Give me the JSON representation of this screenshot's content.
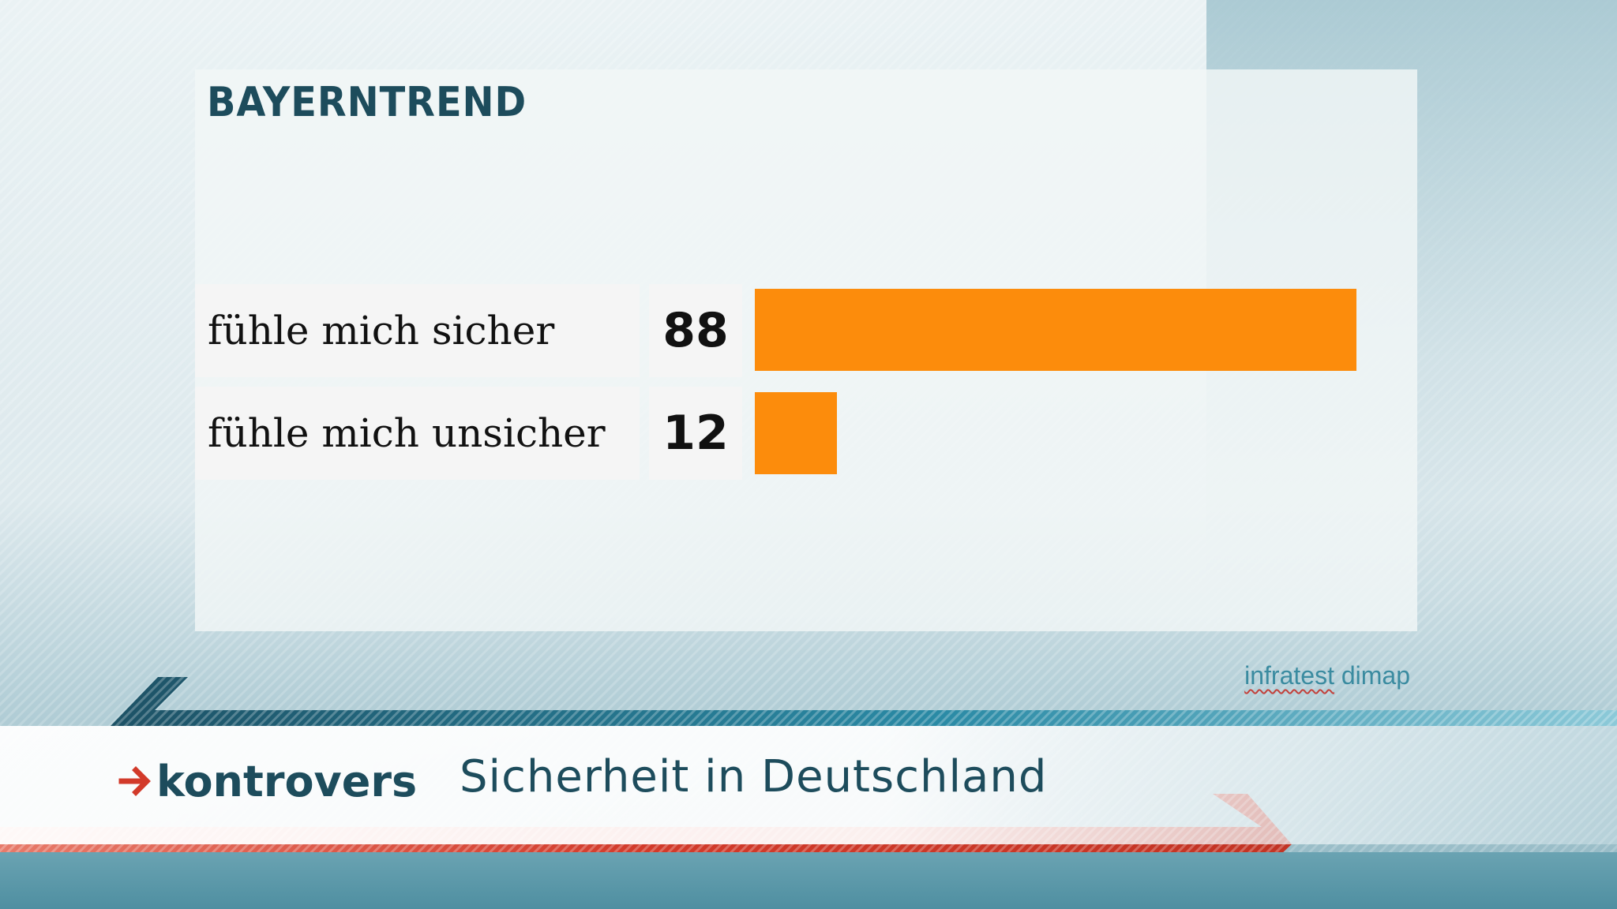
{
  "header": {
    "brand": "BAYERNTREND"
  },
  "chart_data": {
    "type": "bar",
    "orientation": "horizontal",
    "categories": [
      "fühle mich sicher",
      "fühle mich unsicher"
    ],
    "values": [
      88,
      12
    ],
    "value_labels": [
      "88",
      "12"
    ],
    "xlim": [
      0,
      88
    ],
    "grid": false,
    "bar_color": "#fc8c0c"
  },
  "source": {
    "part1": "infratest",
    "part2": "dimap"
  },
  "footer": {
    "logo_text": "kontrovers",
    "subtitle": "Sicherheit in Deutschland"
  },
  "colors": {
    "brand_dark": "#1d4c5c",
    "accent_red": "#d23a2a",
    "bar_orange": "#fc8c0c",
    "teal": "#2a8aa5"
  }
}
